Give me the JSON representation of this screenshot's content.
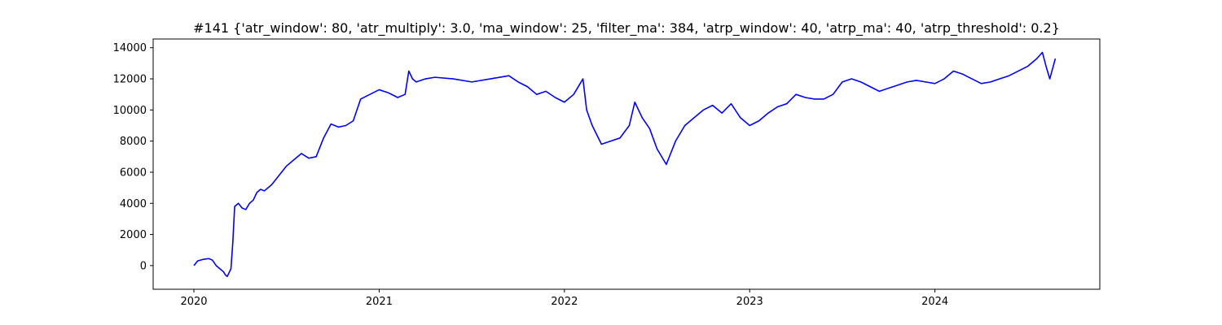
{
  "chart_data": {
    "type": "line",
    "title": "#141 {'atr_window': 80, 'atr_multiply': 3.0, 'ma_window': 25, 'filter_ma': 384, 'atrp_window': 40, 'atrp_ma': 40, 'atrp_threshold': 0.2}",
    "xlabel": "",
    "ylabel": "",
    "x_ticks": [
      "2020",
      "2021",
      "2022",
      "2023",
      "2024"
    ],
    "y_ticks": [
      0,
      2000,
      4000,
      6000,
      8000,
      10000,
      12000,
      14000
    ],
    "xlim": [
      2019.78,
      2024.89
    ],
    "ylim": [
      -1520,
      14560
    ],
    "grid": false,
    "legend": "none",
    "series": [
      {
        "color": "#0000ff",
        "x": [
          2020.0,
          2020.02,
          2020.05,
          2020.08,
          2020.1,
          2020.12,
          2020.14,
          2020.16,
          2020.17,
          2020.18,
          2020.2,
          2020.21,
          2020.22,
          2020.24,
          2020.26,
          2020.28,
          2020.3,
          2020.32,
          2020.34,
          2020.36,
          2020.38,
          2020.42,
          2020.46,
          2020.5,
          2020.54,
          2020.58,
          2020.62,
          2020.66,
          2020.7,
          2020.74,
          2020.78,
          2020.82,
          2020.86,
          2020.9,
          2020.95,
          2021.0,
          2021.05,
          2021.1,
          2021.14,
          2021.16,
          2021.18,
          2021.2,
          2021.25,
          2021.3,
          2021.4,
          2021.5,
          2021.6,
          2021.7,
          2021.75,
          2021.8,
          2021.85,
          2021.9,
          2021.95,
          2022.0,
          2022.05,
          2022.1,
          2022.12,
          2022.15,
          2022.2,
          2022.25,
          2022.3,
          2022.35,
          2022.38,
          2022.42,
          2022.46,
          2022.5,
          2022.55,
          2022.6,
          2022.65,
          2022.7,
          2022.75,
          2022.8,
          2022.85,
          2022.9,
          2022.95,
          2023.0,
          2023.05,
          2023.1,
          2023.15,
          2023.2,
          2023.25,
          2023.3,
          2023.35,
          2023.4,
          2023.45,
          2023.5,
          2023.55,
          2023.6,
          2023.65,
          2023.7,
          2023.75,
          2023.8,
          2023.85,
          2023.9,
          2023.95,
          2024.0,
          2024.05,
          2024.1,
          2024.15,
          2024.2,
          2024.25,
          2024.3,
          2024.35,
          2024.4,
          2024.45,
          2024.5,
          2024.55,
          2024.58,
          2024.6,
          2024.62,
          2024.65
        ],
        "y": [
          0,
          300,
          400,
          450,
          350,
          0,
          -200,
          -400,
          -600,
          -700,
          -200,
          1500,
          3800,
          4000,
          3700,
          3600,
          4000,
          4200,
          4700,
          4900,
          4800,
          5200,
          5800,
          6400,
          6800,
          7200,
          6900,
          7000,
          8200,
          9100,
          8900,
          9000,
          9300,
          10700,
          11000,
          11300,
          11100,
          10800,
          11000,
          12500,
          12000,
          11800,
          12000,
          12100,
          12000,
          11800,
          12000,
          12200,
          11800,
          11500,
          11000,
          11200,
          10800,
          10500,
          11000,
          12000,
          10000,
          9000,
          7800,
          8000,
          8200,
          9000,
          10500,
          9500,
          8800,
          7500,
          6500,
          8000,
          9000,
          9500,
          10000,
          10300,
          9800,
          10400,
          9500,
          9000,
          9300,
          9800,
          10200,
          10400,
          11000,
          10800,
          10700,
          10700,
          11000,
          11800,
          12000,
          11800,
          11500,
          11200,
          11400,
          11600,
          11800,
          11900,
          11800,
          11700,
          12000,
          12500,
          12300,
          12000,
          11700,
          11800,
          12000,
          12200,
          12500,
          12800,
          13300,
          13700,
          12800,
          12000,
          13300
        ]
      }
    ]
  }
}
